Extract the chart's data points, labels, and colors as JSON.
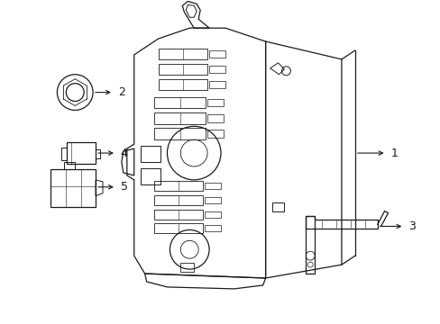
{
  "background_color": "#ffffff",
  "line_color": "#1a1a1a",
  "lw": 0.9
}
